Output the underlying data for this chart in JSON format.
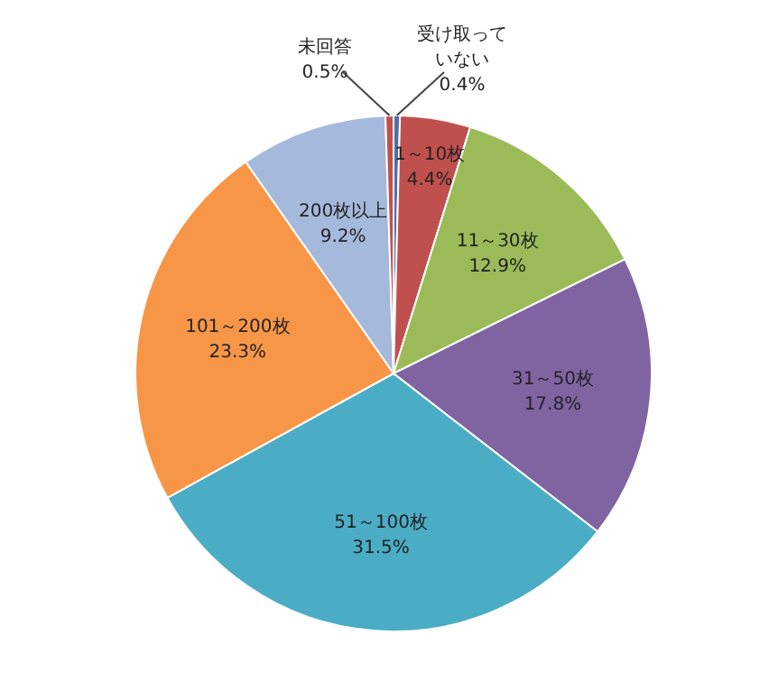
{
  "chart_data": {
    "type": "pie",
    "categories": [
      "受け取っていない",
      "1～10枚",
      "11～30枚",
      "31～50枚",
      "51～100枚",
      "101～200枚",
      "200枚以上",
      "未回答"
    ],
    "values": [
      0.4,
      4.4,
      12.9,
      17.8,
      31.5,
      23.3,
      9.2,
      0.5
    ],
    "value_labels": [
      "0.4%",
      "4.4%",
      "12.9%",
      "17.8%",
      "31.5%",
      "23.3%",
      "9.2%",
      "0.5%"
    ],
    "colors": [
      "#4f6fa8",
      "#c0504d",
      "#9bbb59",
      "#8064a2",
      "#4bacc6",
      "#f79646",
      "#a5b9dc",
      "#c0504d"
    ]
  }
}
